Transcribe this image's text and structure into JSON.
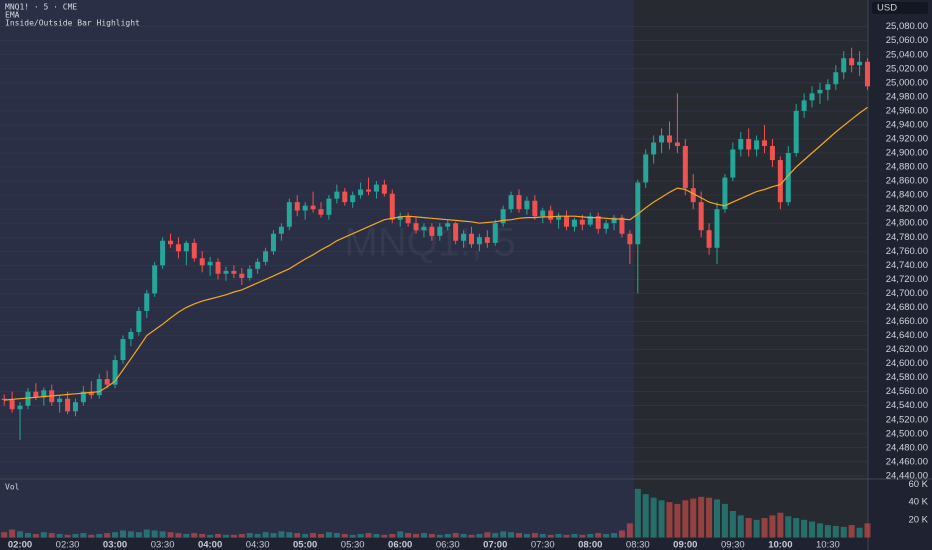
{
  "chart_data": {
    "type": "candlestick",
    "title": "MNQ1! · 5 · CME",
    "indicators": [
      "EMA",
      "Inside/Outside Bar Highlight"
    ],
    "watermark": "MNQ1!, 5",
    "currency": "USD",
    "up_color": "#26a69a",
    "down_color": "#ef5350",
    "grid": true,
    "categories": [
      null,
      null,
      "02:00",
      null,
      null,
      null,
      null,
      null,
      "02:30",
      null,
      null,
      null,
      null,
      null,
      "03:00",
      null,
      null,
      null,
      null,
      null,
      "03:30",
      null,
      null,
      null,
      null,
      null,
      "04:00",
      null,
      null,
      null,
      null,
      null,
      "04:30",
      null,
      null,
      null,
      null,
      null,
      "05:00",
      null,
      null,
      null,
      null,
      null,
      "05:30",
      null,
      null,
      null,
      null,
      null,
      "06:00",
      null,
      null,
      null,
      null,
      null,
      "06:30",
      null,
      null,
      null,
      null,
      null,
      "07:00",
      null,
      null,
      null,
      null,
      null,
      "07:30",
      null,
      null,
      null,
      null,
      null,
      "08:00",
      null,
      null,
      null,
      null,
      null,
      "08:30",
      null,
      null,
      null,
      null,
      null,
      "09:00",
      null,
      null,
      null,
      null,
      null,
      "09:30",
      null,
      null,
      null,
      null,
      null,
      "10:00",
      null,
      null,
      null,
      null,
      null,
      "10:30",
      null,
      null,
      null,
      null,
      null
    ],
    "open": [
      24550,
      24548,
      24535,
      24540,
      24560,
      24552,
      24562,
      24545,
      24550,
      24532,
      24545,
      24560,
      24555,
      24578,
      24570,
      24605,
      24635,
      24645,
      24675,
      24700,
      24740,
      24775,
      24770,
      24760,
      24772,
      24750,
      24740,
      24745,
      24728,
      24732,
      24728,
      24722,
      24735,
      24745,
      24760,
      24785,
      24795,
      24830,
      24818,
      24825,
      24820,
      24812,
      24835,
      24845,
      24830,
      24840,
      24848,
      24845,
      24855,
      24842,
      24805,
      24810,
      24800,
      24790,
      24795,
      24782,
      24795,
      24800,
      24775,
      24785,
      24770,
      24780,
      24772,
      24800,
      24820,
      24840,
      24820,
      24832,
      24810,
      24818,
      24805,
      24810,
      24795,
      24805,
      24798,
      24810,
      24792,
      24800,
      24808,
      24785,
      24770,
      24858,
      24898,
      24915,
      24925,
      24915,
      24910,
      24850,
      24830,
      24790,
      24765,
      24820,
      24865,
      24905,
      24920,
      24905,
      24918,
      24910,
      24890,
      24830,
      24900,
      24960,
      24975,
      24985,
      24990,
      24998,
      25015,
      25035,
      25025,
      25030
    ],
    "high": [
      24556,
      24560,
      24545,
      24565,
      24572,
      24566,
      24570,
      24555,
      24560,
      24550,
      24568,
      24575,
      24585,
      24590,
      24612,
      24640,
      24650,
      24680,
      24705,
      24745,
      24780,
      24785,
      24780,
      24775,
      24778,
      24760,
      24752,
      24750,
      24738,
      24740,
      24736,
      24740,
      24750,
      24765,
      24790,
      24800,
      24835,
      24840,
      24830,
      24845,
      24830,
      24840,
      24855,
      24850,
      24845,
      24858,
      24865,
      24860,
      24862,
      24848,
      24815,
      24815,
      24808,
      24800,
      24800,
      24800,
      24805,
      24802,
      24790,
      24795,
      24785,
      24790,
      24805,
      24825,
      24845,
      24848,
      24838,
      24840,
      24822,
      24825,
      24815,
      24818,
      24808,
      24812,
      24815,
      24815,
      24805,
      24812,
      24812,
      24790,
      24862,
      24905,
      24925,
      24935,
      24945,
      24985,
      24920,
      24870,
      24845,
      24800,
      24830,
      24870,
      24915,
      24930,
      24935,
      24925,
      24940,
      24920,
      24895,
      24910,
      24970,
      24985,
      24995,
      25000,
      25005,
      25025,
      25045,
      25050,
      25045,
      25035
    ],
    "low": [
      24540,
      24530,
      24491,
      24535,
      24548,
      24540,
      24540,
      24530,
      24528,
      24525,
      24540,
      24550,
      24550,
      24565,
      24565,
      24600,
      24625,
      24640,
      24665,
      24695,
      24735,
      24765,
      24750,
      24740,
      24745,
      24730,
      24725,
      24720,
      24718,
      24722,
      24712,
      24718,
      24728,
      24740,
      24755,
      24775,
      24790,
      24810,
      24805,
      24815,
      24808,
      24805,
      24828,
      24825,
      24822,
      24835,
      24840,
      24835,
      24838,
      24800,
      24795,
      24795,
      24785,
      24780,
      24775,
      24775,
      24790,
      24770,
      24765,
      24765,
      24760,
      24765,
      24768,
      24795,
      24815,
      24815,
      24812,
      24805,
      24800,
      24800,
      24792,
      24790,
      24788,
      24790,
      24795,
      24785,
      24785,
      24790,
      24780,
      24742,
      24700,
      24850,
      24885,
      24900,
      24905,
      24900,
      24840,
      24820,
      24780,
      24755,
      24742,
      24815,
      24860,
      24895,
      24895,
      24895,
      24900,
      24880,
      24820,
      24825,
      24895,
      24950,
      24965,
      24970,
      24975,
      24990,
      25005,
      25015,
      25010,
      24990
    ],
    "close": [
      24548,
      24535,
      24540,
      24560,
      24552,
      24562,
      24545,
      24550,
      24532,
      24545,
      24560,
      24555,
      24578,
      24570,
      24605,
      24635,
      24645,
      24675,
      24700,
      24740,
      24775,
      24770,
      24760,
      24772,
      24750,
      24740,
      24745,
      24728,
      24732,
      24728,
      24722,
      24735,
      24745,
      24760,
      24785,
      24795,
      24830,
      24818,
      24825,
      24820,
      24812,
      24835,
      24845,
      24830,
      24840,
      24848,
      24845,
      24855,
      24842,
      24805,
      24810,
      24800,
      24790,
      24795,
      24782,
      24795,
      24800,
      24775,
      24785,
      24770,
      24780,
      24772,
      24800,
      24820,
      24840,
      24820,
      24832,
      24810,
      24818,
      24805,
      24810,
      24795,
      24805,
      24798,
      24810,
      24792,
      24800,
      24808,
      24785,
      24770,
      24858,
      24898,
      24915,
      24925,
      24915,
      24910,
      24850,
      24830,
      24790,
      24765,
      24820,
      24865,
      24905,
      24920,
      24905,
      24918,
      24910,
      24890,
      24830,
      24900,
      24960,
      24975,
      24985,
      24990,
      24998,
      25015,
      25035,
      25025,
      25030,
      24995
    ],
    "ema": {
      "name": "EMA",
      "color": "#f5a623",
      "values": [
        24548,
        24549,
        24550,
        24551,
        24552,
        24553,
        24554,
        24555,
        24556,
        24557,
        24558,
        24559,
        24560,
        24567,
        24575,
        24591,
        24607,
        24623,
        24640,
        24648,
        24656,
        24665,
        24673,
        24680,
        24685,
        24689,
        24692,
        24695,
        24698,
        24702,
        24705,
        24710,
        24715,
        24720,
        24725,
        24730,
        24735,
        24742,
        24749,
        24755,
        24762,
        24768,
        24775,
        24780,
        24785,
        24790,
        24795,
        24800,
        24805,
        24807,
        24809,
        24810,
        24809,
        24808,
        24807,
        24806,
        24805,
        24804,
        24803,
        24802,
        24800,
        24801,
        24802,
        24804,
        24805,
        24807,
        24808,
        24808,
        24809,
        24809,
        24810,
        24810,
        24810,
        24809,
        24808,
        24808,
        24807,
        24806,
        24806,
        24805,
        24813,
        24822,
        24830,
        24837,
        24844,
        24850,
        24848,
        24842,
        24836,
        24830,
        24827,
        24825,
        24830,
        24835,
        24840,
        24845,
        24848,
        24852,
        24855,
        24868,
        24880,
        24890,
        24900,
        24910,
        24920,
        24930,
        24939,
        24948,
        24957,
        24965
      ]
    },
    "ylim": [
      24437,
      25118
    ],
    "yticks": [
      {
        "value": 24440,
        "label": "24,440.00"
      },
      {
        "value": 24460,
        "label": "24,460.00"
      },
      {
        "value": 24480,
        "label": "24,480.00"
      },
      {
        "value": 24500,
        "label": "24,500.00"
      },
      {
        "value": 24520,
        "label": "24,520.00"
      },
      {
        "value": 24540,
        "label": "24,540.00"
      },
      {
        "value": 24560,
        "label": "24,560.00"
      },
      {
        "value": 24580,
        "label": "24,580.00"
      },
      {
        "value": 24600,
        "label": "24,600.00"
      },
      {
        "value": 24620,
        "label": "24,620.00"
      },
      {
        "value": 24640,
        "label": "24,640.00"
      },
      {
        "value": 24660,
        "label": "24,660.00"
      },
      {
        "value": 24680,
        "label": "24,680.00"
      },
      {
        "value": 24700,
        "label": "24,700.00"
      },
      {
        "value": 24720,
        "label": "24,720.00"
      },
      {
        "value": 24740,
        "label": "24,740.00"
      },
      {
        "value": 24760,
        "label": "24,760.00"
      },
      {
        "value": 24780,
        "label": "24,780.00"
      },
      {
        "value": 24800,
        "label": "24,800.00"
      },
      {
        "value": 24820,
        "label": "24,820.00"
      },
      {
        "value": 24840,
        "label": "24,840.00"
      },
      {
        "value": 24860,
        "label": "24,860.00"
      },
      {
        "value": 24880,
        "label": "24,880.00"
      },
      {
        "value": 24900,
        "label": "24,900.00"
      },
      {
        "value": 24920,
        "label": "24,920.00"
      },
      {
        "value": 24940,
        "label": "24,940.00"
      },
      {
        "value": 24960,
        "label": "24,960.00"
      },
      {
        "value": 24980,
        "label": "24,980.00"
      },
      {
        "value": 25000,
        "label": "25,000.00"
      },
      {
        "value": 25020,
        "label": "25,020.00"
      },
      {
        "value": 25040,
        "label": "25,040.00"
      },
      {
        "value": 25060,
        "label": "25,060.00"
      },
      {
        "value": 25080,
        "label": "25,080.00"
      }
    ],
    "volume": {
      "name": "Vol",
      "ylim": [
        0,
        65000
      ],
      "yticks": [
        {
          "value": 20000,
          "label": "20 K"
        },
        {
          "value": 40000,
          "label": "40 K"
        },
        {
          "value": 60000,
          "label": "60 K"
        }
      ],
      "values": [
        6000,
        9000,
        7000,
        5000,
        4000,
        6000,
        5000,
        4000,
        3000,
        4000,
        5000,
        3000,
        4000,
        5000,
        6000,
        8000,
        7000,
        6000,
        9000,
        8000,
        7000,
        6000,
        5000,
        4000,
        5000,
        4000,
        3000,
        4000,
        3000,
        3000,
        4000,
        5000,
        4000,
        6000,
        5000,
        7000,
        6000,
        5000,
        4000,
        5000,
        4000,
        6000,
        5000,
        4000,
        3000,
        4000,
        5000,
        4000,
        3000,
        4000,
        7000,
        5000,
        4000,
        5000,
        4000,
        3000,
        4000,
        5000,
        4000,
        3000,
        4000,
        6000,
        5000,
        7000,
        6000,
        5000,
        4000,
        5000,
        4000,
        3000,
        4000,
        3000,
        4000,
        3000,
        4000,
        5000,
        4000,
        5000,
        8000,
        16000,
        55000,
        49000,
        45000,
        42000,
        40000,
        38000,
        42000,
        44000,
        46000,
        45000,
        43000,
        38000,
        30000,
        25000,
        22000,
        20000,
        22000,
        25000,
        28000,
        24000,
        22000,
        20000,
        18000,
        16000,
        14000,
        13000,
        12000,
        14000,
        11000,
        16000
      ]
    }
  }
}
